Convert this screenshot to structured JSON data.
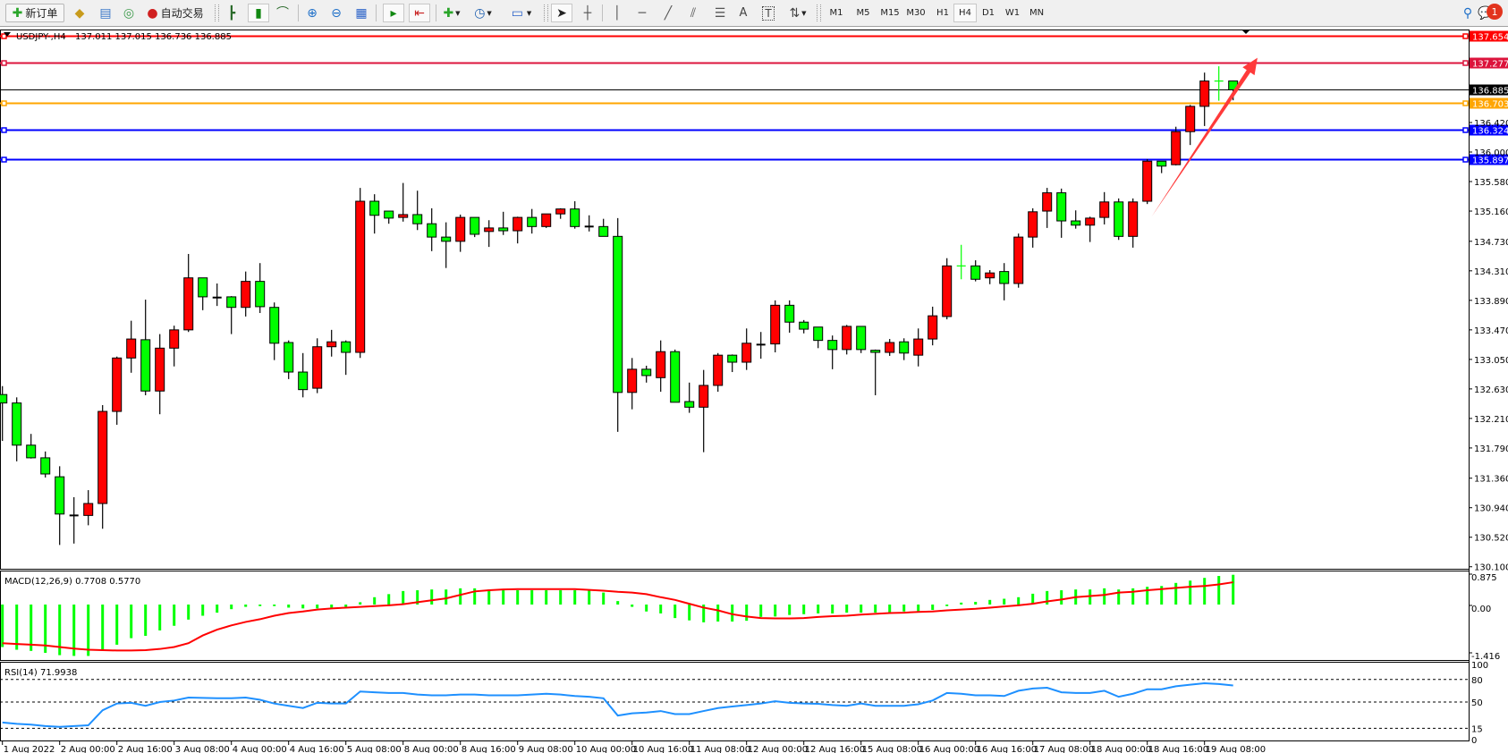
{
  "toolbar": {
    "new_order_label": "新订单",
    "auto_trading_label": "自动交易",
    "periods": [
      "M1",
      "M5",
      "M15",
      "M30",
      "H1",
      "H4",
      "D1",
      "W1",
      "MN"
    ],
    "selected_period": "H4",
    "notification_count": "1",
    "text_tool_label": "A",
    "label_tool_label": "T"
  },
  "chart_header": {
    "symbol": "USDJPY-,H4",
    "ohlc": "137.011 137.015 136.736 136.885"
  },
  "colors": {
    "up_candle": "#ff0000",
    "down_candle": "#00ff00",
    "macd_histogram": "#00ff00",
    "macd_signal": "#ff0000",
    "rsi_line": "#1e90ff",
    "arrow": "#ff3a3a"
  },
  "chart_data": [
    {
      "type": "candlestick",
      "title": "USDJPY-,H4",
      "ylim": [
        130.1,
        137.654
      ],
      "y_ticks": [
        "136.420",
        "136.000",
        "135.580",
        "135.160",
        "134.730",
        "134.310",
        "133.890",
        "133.470",
        "133.050",
        "132.630",
        "132.210",
        "131.790",
        "131.360",
        "130.940",
        "130.520",
        "130.100"
      ],
      "x_tick_labels": [
        {
          "candle": 0,
          "label": "1 Aug 2022"
        },
        {
          "candle": 4,
          "label": "2 Aug 00:00"
        },
        {
          "candle": 8,
          "label": "2 Aug 16:00"
        },
        {
          "candle": 12,
          "label": "3 Aug 08:00"
        },
        {
          "candle": 16,
          "label": "4 Aug 00:00"
        },
        {
          "candle": 20,
          "label": "4 Aug 16:00"
        },
        {
          "candle": 24,
          "label": "5 Aug 08:00"
        },
        {
          "candle": 28,
          "label": "8 Aug 00:00"
        },
        {
          "candle": 32,
          "label": "8 Aug 16:00"
        },
        {
          "candle": 36,
          "label": "9 Aug 08:00"
        },
        {
          "candle": 40,
          "label": "10 Aug 00:00"
        },
        {
          "candle": 44,
          "label": "10 Aug 16:00"
        },
        {
          "candle": 48,
          "label": "11 Aug 08:00"
        },
        {
          "candle": 52,
          "label": "12 Aug 00:00"
        },
        {
          "candle": 56,
          "label": "12 Aug 16:00"
        },
        {
          "candle": 60,
          "label": "15 Aug 08:00"
        },
        {
          "candle": 64,
          "label": "16 Aug 00:00"
        },
        {
          "candle": 68,
          "label": "16 Aug 16:00"
        },
        {
          "candle": 72,
          "label": "17 Aug 08:00"
        },
        {
          "candle": 76,
          "label": "18 Aug 00:00"
        },
        {
          "candle": 80,
          "label": "18 Aug 16:00"
        },
        {
          "candle": 84,
          "label": "19 Aug 08:00"
        }
      ],
      "ohlc_columns": [
        "open",
        "high",
        "low",
        "close"
      ],
      "candles": [
        [
          132.55,
          132.67,
          131.89,
          132.43
        ],
        [
          132.43,
          132.51,
          131.6,
          131.83
        ],
        [
          131.83,
          131.99,
          131.64,
          131.65
        ],
        [
          131.65,
          131.74,
          131.37,
          131.42
        ],
        [
          131.38,
          131.53,
          130.41,
          130.85
        ],
        [
          130.84,
          131.09,
          130.43,
          130.83
        ],
        [
          130.83,
          131.19,
          130.69,
          131.0
        ],
        [
          131.0,
          132.4,
          130.64,
          132.31
        ],
        [
          132.31,
          133.09,
          132.12,
          133.07
        ],
        [
          133.07,
          133.6,
          132.86,
          133.34
        ],
        [
          133.33,
          133.9,
          132.54,
          132.6
        ],
        [
          132.6,
          133.41,
          132.27,
          133.21
        ],
        [
          133.21,
          133.53,
          132.95,
          133.47
        ],
        [
          133.47,
          134.55,
          133.44,
          134.21
        ],
        [
          134.21,
          134.21,
          133.75,
          133.94
        ],
        [
          133.93,
          134.13,
          133.81,
          133.93
        ],
        [
          133.94,
          133.95,
          133.41,
          133.79
        ],
        [
          133.79,
          134.3,
          133.66,
          134.16
        ],
        [
          134.16,
          134.42,
          133.71,
          133.8
        ],
        [
          133.79,
          133.86,
          133.04,
          133.28
        ],
        [
          133.29,
          133.32,
          132.77,
          132.87
        ],
        [
          132.87,
          133.14,
          132.51,
          132.62
        ],
        [
          132.64,
          133.35,
          132.57,
          133.23
        ],
        [
          133.23,
          133.47,
          133.09,
          133.3
        ],
        [
          133.3,
          133.32,
          132.83,
          133.15
        ],
        [
          133.15,
          135.49,
          133.07,
          135.3
        ],
        [
          135.3,
          135.4,
          134.84,
          135.1
        ],
        [
          135.16,
          135.16,
          134.98,
          135.06
        ],
        [
          135.07,
          135.56,
          135.01,
          135.11
        ],
        [
          135.11,
          135.45,
          134.89,
          134.98
        ],
        [
          134.98,
          135.2,
          134.59,
          134.79
        ],
        [
          134.79,
          135.0,
          134.35,
          134.73
        ],
        [
          134.73,
          135.11,
          134.58,
          135.07
        ],
        [
          135.07,
          135.07,
          134.79,
          134.83
        ],
        [
          134.87,
          135.03,
          134.65,
          134.92
        ],
        [
          134.92,
          135.15,
          134.82,
          134.88
        ],
        [
          134.88,
          135.08,
          134.7,
          135.07
        ],
        [
          135.07,
          135.19,
          134.84,
          134.94
        ],
        [
          134.94,
          135.12,
          134.92,
          135.12
        ],
        [
          135.12,
          135.2,
          135.05,
          135.19
        ],
        [
          135.19,
          135.3,
          134.91,
          134.94
        ],
        [
          134.94,
          135.1,
          134.87,
          134.94
        ],
        [
          134.94,
          135.05,
          134.8,
          134.8
        ],
        [
          134.8,
          135.06,
          132.02,
          132.58
        ],
        [
          132.58,
          133.07,
          132.34,
          132.91
        ],
        [
          132.91,
          132.96,
          132.72,
          132.82
        ],
        [
          132.79,
          133.32,
          132.59,
          133.16
        ],
        [
          133.16,
          133.19,
          132.44,
          132.44
        ],
        [
          132.45,
          132.72,
          132.29,
          132.37
        ],
        [
          132.37,
          132.9,
          131.73,
          132.68
        ],
        [
          132.68,
          133.14,
          132.59,
          133.11
        ],
        [
          133.11,
          133.12,
          132.87,
          133.01
        ],
        [
          133.01,
          133.49,
          132.9,
          133.28
        ],
        [
          133.26,
          133.44,
          133.06,
          133.26
        ],
        [
          133.27,
          133.89,
          133.15,
          133.82
        ],
        [
          133.82,
          133.89,
          133.43,
          133.58
        ],
        [
          133.58,
          133.61,
          133.42,
          133.48
        ],
        [
          133.51,
          133.51,
          133.21,
          133.32
        ],
        [
          133.32,
          133.39,
          132.91,
          133.19
        ],
        [
          133.19,
          133.54,
          133.12,
          133.52
        ],
        [
          133.52,
          133.52,
          133.14,
          133.19
        ],
        [
          133.18,
          133.19,
          132.54,
          133.15
        ],
        [
          133.15,
          133.34,
          133.1,
          133.29
        ],
        [
          133.3,
          133.35,
          133.04,
          133.14
        ],
        [
          133.11,
          133.49,
          132.95,
          133.34
        ],
        [
          133.34,
          133.8,
          133.25,
          133.67
        ],
        [
          133.66,
          134.49,
          133.62,
          134.38
        ],
        [
          134.38,
          134.68,
          134.19,
          134.38
        ],
        [
          134.38,
          134.46,
          134.16,
          134.19
        ],
        [
          134.21,
          134.32,
          134.12,
          134.28
        ],
        [
          134.3,
          134.42,
          133.89,
          134.13
        ],
        [
          134.13,
          134.84,
          134.07,
          134.79
        ],
        [
          134.79,
          135.2,
          134.64,
          135.15
        ],
        [
          135.16,
          135.49,
          134.92,
          135.42
        ],
        [
          135.42,
          135.48,
          134.78,
          135.02
        ],
        [
          135.02,
          135.17,
          134.91,
          134.96
        ],
        [
          134.96,
          135.08,
          134.72,
          135.06
        ],
        [
          135.07,
          135.43,
          134.97,
          135.29
        ],
        [
          135.29,
          135.34,
          134.75,
          134.8
        ],
        [
          134.8,
          135.34,
          134.64,
          135.29
        ],
        [
          135.3,
          135.9,
          135.26,
          135.87
        ],
        [
          135.87,
          135.87,
          135.7,
          135.8
        ],
        [
          135.82,
          136.36,
          135.81,
          136.29
        ],
        [
          136.29,
          136.67,
          136.1,
          136.65
        ],
        [
          136.65,
          137.13,
          136.37,
          137.01
        ],
        [
          137.01,
          137.22,
          136.73,
          137.01
        ],
        [
          137.011,
          137.015,
          136.736,
          136.885
        ]
      ],
      "green_cross_candles": [
        67,
        85
      ],
      "horizontal_lines": [
        {
          "price": "137.654",
          "color": "#ff0000"
        },
        {
          "price": "137.277",
          "color": "#dc143c"
        },
        {
          "price": "136.885",
          "color": "#000000",
          "bid": true
        },
        {
          "price": "136.703",
          "color": "#ffa500"
        },
        {
          "price": "136.324",
          "color": "#0000ff"
        },
        {
          "price": "135.897",
          "color": "#0000ff"
        }
      ],
      "annotation_arrow": {
        "from_candle": 80.3,
        "from_price": 135.08,
        "to_candle": 87.7,
        "to_price": 137.34
      }
    },
    {
      "type": "bar+line",
      "title": "MACD(12,26,9) 0.7708 0.5770",
      "ylim": [
        -1.416,
        0.875
      ],
      "y_ticks": [
        "0.875",
        "0.00",
        "-1.416"
      ],
      "histogram": [
        -1.1,
        -1.17,
        -1.2,
        -1.25,
        -1.31,
        -1.33,
        -1.33,
        -1.18,
        -1.04,
        -0.87,
        -0.81,
        -0.67,
        -0.55,
        -0.39,
        -0.29,
        -0.21,
        -0.12,
        -0.06,
        -0.04,
        -0.04,
        -0.08,
        -0.1,
        -0.1,
        -0.08,
        -0.06,
        0.06,
        0.19,
        0.27,
        0.35,
        0.37,
        0.39,
        0.39,
        0.42,
        0.42,
        0.39,
        0.37,
        0.37,
        0.37,
        0.37,
        0.37,
        0.37,
        0.37,
        0.31,
        0.09,
        -0.06,
        -0.18,
        -0.23,
        -0.35,
        -0.41,
        -0.46,
        -0.44,
        -0.44,
        -0.42,
        -0.32,
        -0.31,
        -0.27,
        -0.25,
        -0.23,
        -0.23,
        -0.21,
        -0.21,
        -0.21,
        -0.21,
        -0.18,
        -0.18,
        -0.14,
        -0.04,
        0.05,
        0.07,
        0.12,
        0.15,
        0.19,
        0.28,
        0.35,
        0.37,
        0.39,
        0.39,
        0.42,
        0.39,
        0.42,
        0.46,
        0.48,
        0.56,
        0.62,
        0.69,
        0.74,
        0.7708
      ],
      "signal": [
        -1.0,
        -1.02,
        -1.04,
        -1.06,
        -1.1,
        -1.14,
        -1.17,
        -1.18,
        -1.19,
        -1.19,
        -1.18,
        -1.15,
        -1.1,
        -1.0,
        -0.8,
        -0.65,
        -0.54,
        -0.45,
        -0.38,
        -0.29,
        -0.22,
        -0.18,
        -0.13,
        -0.1,
        -0.08,
        -0.06,
        -0.04,
        -0.02,
        0.01,
        0.06,
        0.11,
        0.16,
        0.25,
        0.34,
        0.37,
        0.39,
        0.4,
        0.4,
        0.4,
        0.4,
        0.4,
        0.38,
        0.36,
        0.33,
        0.31,
        0.27,
        0.19,
        0.12,
        0.02,
        -0.08,
        -0.15,
        -0.25,
        -0.31,
        -0.35,
        -0.36,
        -0.36,
        -0.35,
        -0.32,
        -0.3,
        -0.29,
        -0.26,
        -0.24,
        -0.22,
        -0.21,
        -0.19,
        -0.18,
        -0.15,
        -0.13,
        -0.11,
        -0.08,
        -0.05,
        -0.02,
        0.02,
        0.08,
        0.13,
        0.19,
        0.22,
        0.25,
        0.31,
        0.33,
        0.37,
        0.4,
        0.43,
        0.46,
        0.48,
        0.52,
        0.577
      ]
    },
    {
      "type": "line",
      "title": "RSI(14) 71.9938",
      "ylim": [
        0,
        100
      ],
      "y_ticks": [
        "100",
        "80",
        "50",
        "15",
        "0"
      ],
      "levels": [
        80,
        50,
        15
      ],
      "values": [
        22.7,
        21,
        20,
        18,
        17,
        18,
        19,
        39,
        48,
        49,
        45,
        50,
        52,
        56,
        55.5,
        55,
        55,
        56,
        53,
        48,
        45,
        42,
        49,
        48,
        48,
        64,
        63,
        62,
        62,
        60,
        59,
        59,
        60,
        60,
        59,
        59,
        59,
        60,
        61,
        60,
        58,
        57,
        55,
        32,
        35,
        36,
        38,
        34,
        34,
        38,
        42,
        44,
        46,
        48,
        51,
        49,
        48,
        47.6,
        46,
        45,
        48,
        45,
        45,
        45,
        47,
        52,
        62,
        61,
        59,
        59,
        58,
        65,
        68,
        69,
        63,
        62,
        62,
        65,
        57,
        61,
        67,
        67,
        71,
        73,
        75,
        74,
        71.9938
      ]
    }
  ]
}
